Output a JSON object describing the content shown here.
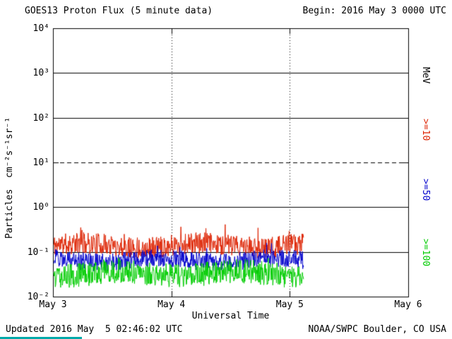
{
  "header": {
    "title": "GOES13 Proton Flux (5 minute data)",
    "begin_label": "Begin: 2016 May 3 0000 UTC"
  },
  "footer": {
    "updated": "Updated 2016 May  5 02:46:02 UTC",
    "source": "NOAA/SWPC Boulder, CO USA"
  },
  "axes": {
    "x_label": "Universal Time",
    "x_ticks": [
      "May 3",
      "May 4",
      "May 5",
      "May 6"
    ],
    "y_label": "Particles  cm⁻²s⁻¹sr⁻¹",
    "y_ticks": [
      "10⁴",
      "10³",
      "10²",
      "10¹",
      "10⁰",
      "10⁻¹",
      "10⁻²"
    ]
  },
  "legend": {
    "unit": "MeV",
    "items": [
      {
        "label": ">=10",
        "color": "#dd2200"
      },
      {
        "label": ">=50",
        "color": "#0000cc"
      },
      {
        "label": ">=100",
        "color": "#00cc00"
      }
    ]
  },
  "chart_data": {
    "type": "line",
    "title": "GOES13 Proton Flux (5 minute data)",
    "xlabel": "Universal Time",
    "ylabel": "Particles cm-2 s-1 sr-1",
    "x_categories_days": [
      "May 3",
      "May 4",
      "May 5",
      "May 6"
    ],
    "x_span_days": 3,
    "ylim_log10": [
      -2,
      4
    ],
    "yscale": "log",
    "grid": {
      "solid_hline_exps": [
        3,
        2,
        0,
        -1
      ],
      "dashed_hline_exps": [
        1
      ],
      "dotted_vline_day_indices": [
        1,
        2
      ]
    },
    "cadence_minutes": 5,
    "data_start": "2016 May 3 0000 UTC",
    "data_end": "2016 May 5 02:46 UTC",
    "data_end_day_fraction": 2.115,
    "series": [
      {
        "name": ">=10 MeV",
        "color": "#dd2200",
        "approx_mean": 0.14,
        "approx_range": [
          0.07,
          0.45
        ],
        "base": 0.14,
        "log_amp": 0.24,
        "spike_factor": 1.7,
        "seed": 11
      },
      {
        "name": ">=50 MeV",
        "color": "#0000cc",
        "approx_mean": 0.065,
        "approx_range": [
          0.04,
          0.12
        ],
        "base": 0.065,
        "log_amp": 0.2,
        "spike_factor": 1.4,
        "seed": 29
      },
      {
        "name": ">=100 MeV",
        "color": "#00cc00",
        "approx_mean": 0.033,
        "approx_range": [
          0.015,
          0.06
        ],
        "base": 0.033,
        "log_amp": 0.27,
        "spike_factor": 1.3,
        "seed": 47
      }
    ]
  },
  "decor": {
    "teal_bar_color": "#00aaaa"
  }
}
